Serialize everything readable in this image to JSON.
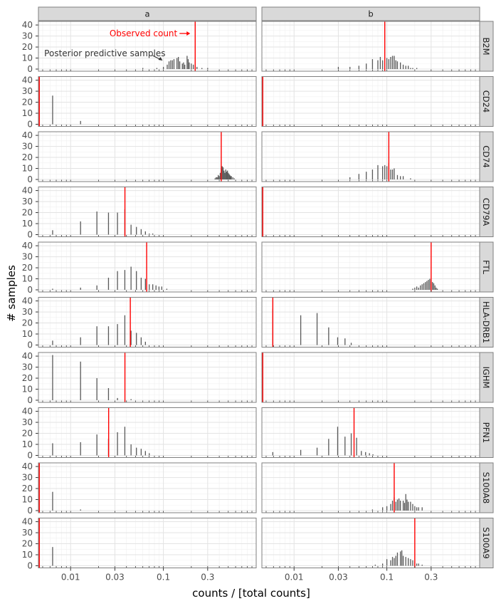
{
  "chart_data": {
    "type": "bar",
    "subtype": "faceted histogram with observed-value reference lines",
    "xlabel": "counts / [total counts]",
    "ylabel": "# samples",
    "x_scale": "log10",
    "xlim": [
      0.0045,
      1.0
    ],
    "ylim": [
      0,
      42
    ],
    "x_ticks": [
      0.01,
      0.03,
      0.1,
      0.3
    ],
    "x_tick_labels": [
      "0.01",
      "0.03",
      "0.1",
      "0.3"
    ],
    "y_ticks": [
      0,
      10,
      20,
      30,
      40
    ],
    "y_tick_labels": [
      "0",
      "10",
      "20",
      "30",
      "40"
    ],
    "columns": [
      "a",
      "b"
    ],
    "rows": [
      "B2M",
      "CD24",
      "CD74",
      "CD79A",
      "FTL",
      "HLA-DRB1",
      "IGHM",
      "PFN1",
      "S100A8",
      "S100A9"
    ],
    "grid": true,
    "colors": {
      "bars": "#595959",
      "observed": "#ff0000",
      "strip": "#d9d9d9",
      "annotation": "#333333"
    },
    "annotations": [
      {
        "text": "Observed count",
        "color": "#ff0000",
        "panel": "B2M/a",
        "points_to": "observed line"
      },
      {
        "text": "Posterior predictive samples",
        "color": "#333333",
        "panel": "B2M/a",
        "points_to": "histogram"
      }
    ],
    "panels": [
      {
        "row": "B2M",
        "col": "a",
        "observed": 0.22,
        "bars": [
          [
            0.06,
            1
          ],
          [
            0.085,
            1
          ],
          [
            0.1,
            2
          ],
          [
            0.11,
            4
          ],
          [
            0.115,
            7
          ],
          [
            0.12,
            8
          ],
          [
            0.125,
            8
          ],
          [
            0.13,
            9
          ],
          [
            0.14,
            10
          ],
          [
            0.145,
            11
          ],
          [
            0.15,
            7
          ],
          [
            0.16,
            5
          ],
          [
            0.165,
            6
          ],
          [
            0.17,
            4
          ],
          [
            0.18,
            12
          ],
          [
            0.185,
            9
          ],
          [
            0.19,
            6
          ],
          [
            0.2,
            5
          ],
          [
            0.21,
            4
          ],
          [
            0.22,
            3
          ],
          [
            0.23,
            2
          ],
          [
            0.26,
            1
          ],
          [
            0.3,
            1
          ]
        ]
      },
      {
        "row": "B2M",
        "col": "b",
        "observed": 0.095,
        "bars": [
          [
            0.03,
            2
          ],
          [
            0.04,
            2
          ],
          [
            0.05,
            3
          ],
          [
            0.06,
            5
          ],
          [
            0.07,
            9
          ],
          [
            0.08,
            8
          ],
          [
            0.085,
            11
          ],
          [
            0.09,
            8
          ],
          [
            0.1,
            10
          ],
          [
            0.105,
            9
          ],
          [
            0.11,
            11
          ],
          [
            0.115,
            12
          ],
          [
            0.12,
            12
          ],
          [
            0.125,
            8
          ],
          [
            0.13,
            7
          ],
          [
            0.14,
            6
          ],
          [
            0.15,
            4
          ],
          [
            0.16,
            3
          ],
          [
            0.17,
            3
          ],
          [
            0.18,
            1
          ],
          [
            0.19,
            1
          ],
          [
            0.21,
            1
          ]
        ]
      },
      {
        "row": "CD24",
        "col": "a",
        "observed": 0.0046,
        "bars": [
          [
            0.0064,
            26
          ],
          [
            0.0128,
            3
          ]
        ]
      },
      {
        "row": "CD24",
        "col": "b",
        "observed": 0.0046,
        "bars": []
      },
      {
        "row": "CD74",
        "col": "a",
        "observed": 0.42,
        "bars": [
          [
            0.36,
            1
          ],
          [
            0.37,
            2
          ],
          [
            0.38,
            2
          ],
          [
            0.39,
            4
          ],
          [
            0.4,
            3
          ],
          [
            0.41,
            6
          ],
          [
            0.42,
            10
          ],
          [
            0.43,
            12
          ],
          [
            0.44,
            11
          ],
          [
            0.45,
            8
          ],
          [
            0.46,
            6
          ],
          [
            0.47,
            9
          ],
          [
            0.48,
            7
          ],
          [
            0.49,
            8
          ],
          [
            0.5,
            6
          ],
          [
            0.51,
            5
          ],
          [
            0.52,
            4
          ],
          [
            0.53,
            3
          ],
          [
            0.54,
            3
          ],
          [
            0.56,
            2
          ],
          [
            0.58,
            1
          ]
        ]
      },
      {
        "row": "CD74",
        "col": "b",
        "observed": 0.105,
        "bars": [
          [
            0.04,
            2
          ],
          [
            0.05,
            5
          ],
          [
            0.06,
            7
          ],
          [
            0.07,
            9
          ],
          [
            0.08,
            13
          ],
          [
            0.09,
            12
          ],
          [
            0.095,
            13
          ],
          [
            0.1,
            12
          ],
          [
            0.105,
            15
          ],
          [
            0.11,
            9
          ],
          [
            0.115,
            9
          ],
          [
            0.12,
            10
          ],
          [
            0.13,
            4
          ],
          [
            0.14,
            3
          ],
          [
            0.15,
            3
          ],
          [
            0.18,
            1
          ]
        ]
      },
      {
        "row": "CD79A",
        "col": "a",
        "observed": 0.0385,
        "bars": [
          [
            0.0064,
            4
          ],
          [
            0.0128,
            12
          ],
          [
            0.0192,
            21
          ],
          [
            0.0256,
            20
          ],
          [
            0.032,
            20
          ],
          [
            0.0384,
            23
          ],
          [
            0.0448,
            9
          ],
          [
            0.0512,
            7
          ],
          [
            0.0576,
            5
          ],
          [
            0.064,
            3
          ],
          [
            0.0704,
            1
          ],
          [
            0.0768,
            1
          ]
        ]
      },
      {
        "row": "CD79A",
        "col": "b",
        "observed": 0.0046,
        "bars": []
      },
      {
        "row": "FTL",
        "col": "a",
        "observed": 0.066,
        "bars": [
          [
            0.0064,
            1
          ],
          [
            0.0128,
            2
          ],
          [
            0.0192,
            4
          ],
          [
            0.0256,
            11
          ],
          [
            0.032,
            17
          ],
          [
            0.0384,
            18
          ],
          [
            0.0448,
            21
          ],
          [
            0.0512,
            17
          ],
          [
            0.0576,
            11
          ],
          [
            0.064,
            10
          ],
          [
            0.0704,
            5
          ],
          [
            0.0768,
            5
          ],
          [
            0.0832,
            4
          ],
          [
            0.0896,
            3
          ],
          [
            0.096,
            3
          ],
          [
            0.1088,
            1
          ]
        ]
      },
      {
        "row": "FTL",
        "col": "b",
        "observed": 0.3,
        "bars": [
          [
            0.19,
            1
          ],
          [
            0.2,
            2
          ],
          [
            0.21,
            3
          ],
          [
            0.22,
            2
          ],
          [
            0.23,
            4
          ],
          [
            0.24,
            5
          ],
          [
            0.25,
            6
          ],
          [
            0.26,
            7
          ],
          [
            0.27,
            8
          ],
          [
            0.28,
            9
          ],
          [
            0.29,
            10
          ],
          [
            0.3,
            8
          ],
          [
            0.31,
            7
          ],
          [
            0.32,
            6
          ],
          [
            0.33,
            4
          ],
          [
            0.34,
            2
          ],
          [
            0.35,
            1
          ]
        ]
      },
      {
        "row": "HLA-DRB1",
        "col": "a",
        "observed": 0.044,
        "bars": [
          [
            0.0064,
            4
          ],
          [
            0.0128,
            7
          ],
          [
            0.0192,
            17
          ],
          [
            0.0256,
            17
          ],
          [
            0.032,
            19
          ],
          [
            0.0384,
            27
          ],
          [
            0.0448,
            13
          ],
          [
            0.0512,
            11
          ],
          [
            0.0576,
            7
          ],
          [
            0.064,
            3
          ]
        ]
      },
      {
        "row": "HLA-DRB1",
        "col": "b",
        "observed": 0.0059,
        "bars": [
          [
            0.0059,
            33
          ],
          [
            0.0118,
            27
          ],
          [
            0.0177,
            29
          ],
          [
            0.0236,
            16
          ],
          [
            0.0295,
            7
          ],
          [
            0.0354,
            6
          ],
          [
            0.0413,
            2
          ]
        ]
      },
      {
        "row": "IGHM",
        "col": "a",
        "observed": 0.0385,
        "bars": [
          [
            0.0064,
            41
          ],
          [
            0.0128,
            35
          ],
          [
            0.0192,
            20
          ],
          [
            0.0256,
            11
          ],
          [
            0.032,
            2
          ],
          [
            0.0448,
            1
          ]
        ]
      },
      {
        "row": "IGHM",
        "col": "b",
        "observed": 0.0046,
        "bars": []
      },
      {
        "row": "PFN1",
        "col": "a",
        "observed": 0.0257,
        "bars": [
          [
            0.0064,
            11
          ],
          [
            0.0128,
            12
          ],
          [
            0.0192,
            19
          ],
          [
            0.0256,
            15
          ],
          [
            0.032,
            21
          ],
          [
            0.0384,
            26
          ],
          [
            0.0448,
            10
          ],
          [
            0.0512,
            7
          ],
          [
            0.0576,
            6
          ],
          [
            0.064,
            4
          ],
          [
            0.0704,
            2
          ]
        ]
      },
      {
        "row": "PFN1",
        "col": "b",
        "observed": 0.0443,
        "bars": [
          [
            0.0059,
            3
          ],
          [
            0.0118,
            5
          ],
          [
            0.0177,
            7
          ],
          [
            0.0236,
            15
          ],
          [
            0.0295,
            26
          ],
          [
            0.0354,
            17
          ],
          [
            0.0413,
            20
          ],
          [
            0.0472,
            16
          ],
          [
            0.0531,
            4
          ],
          [
            0.059,
            3
          ],
          [
            0.0649,
            2
          ],
          [
            0.0708,
            1
          ]
        ]
      },
      {
        "row": "S100A8",
        "col": "a",
        "observed": 0.0046,
        "bars": [
          [
            0.0064,
            17
          ],
          [
            0.0128,
            1
          ]
        ]
      },
      {
        "row": "S100A8",
        "col": "b",
        "observed": 0.12,
        "bars": [
          [
            0.07,
            1
          ],
          [
            0.09,
            3
          ],
          [
            0.1,
            4
          ],
          [
            0.11,
            6
          ],
          [
            0.115,
            9
          ],
          [
            0.12,
            12
          ],
          [
            0.125,
            8
          ],
          [
            0.13,
            10
          ],
          [
            0.135,
            11
          ],
          [
            0.14,
            9
          ],
          [
            0.15,
            9
          ],
          [
            0.155,
            7
          ],
          [
            0.16,
            15
          ],
          [
            0.165,
            10
          ],
          [
            0.17,
            8
          ],
          [
            0.18,
            8
          ],
          [
            0.19,
            6
          ],
          [
            0.2,
            4
          ],
          [
            0.21,
            3
          ],
          [
            0.22,
            3
          ],
          [
            0.24,
            3
          ]
        ]
      },
      {
        "row": "S100A9",
        "col": "a",
        "observed": 0.0046,
        "bars": [
          [
            0.0064,
            17
          ]
        ]
      },
      {
        "row": "S100A9",
        "col": "b",
        "observed": 0.2,
        "bars": [
          [
            0.075,
            1
          ],
          [
            0.09,
            2
          ],
          [
            0.1,
            6
          ],
          [
            0.11,
            5
          ],
          [
            0.115,
            8
          ],
          [
            0.12,
            7
          ],
          [
            0.125,
            9
          ],
          [
            0.13,
            12
          ],
          [
            0.14,
            13
          ],
          [
            0.145,
            14
          ],
          [
            0.15,
            9
          ],
          [
            0.16,
            8
          ],
          [
            0.17,
            7
          ],
          [
            0.18,
            6
          ],
          [
            0.19,
            5
          ],
          [
            0.2,
            4
          ],
          [
            0.21,
            2
          ],
          [
            0.22,
            2
          ],
          [
            0.24,
            1
          ]
        ]
      }
    ]
  }
}
